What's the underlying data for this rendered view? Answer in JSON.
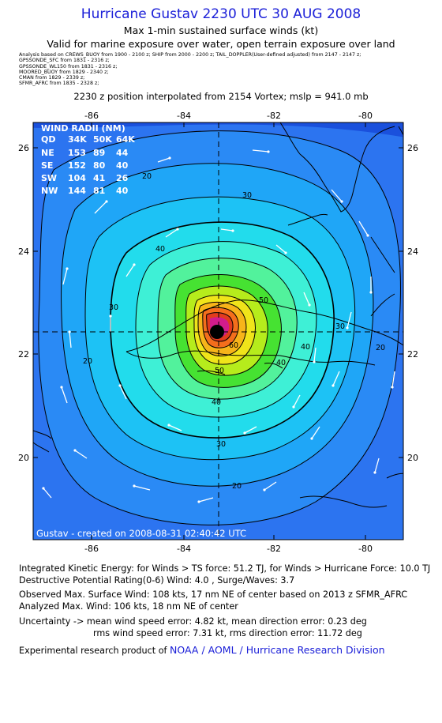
{
  "header": {
    "title": "Hurricane Gustav 2230 UTC 30 AUG 2008",
    "subtitle": "Max 1-min sustained surface winds (kt)",
    "validity": "Valid for marine exposure over water, open terrain exposure over land",
    "sources": [
      "Analysis based on CREWS_BUOY from 1900 - 2100 z;  SHIP from 2000 - 2200 z;  TAIL_DOPPLER(User-defined adjusted) from 2147 - 2147 z;",
      "GPSSONDE_SFC from 1831 - 2316 z;",
      "GPSSONDE_WL150 from 1831 - 2316 z;",
      "MOORED_BUOY from 1829 - 2340 z;",
      "CMAN from 1829 - 2339 z;",
      "SFMR_AFRC from 1835 - 2328 z;"
    ],
    "position_note": "2230 z position interpolated from 2154 Vortex; mslp = 941.0 mb"
  },
  "map": {
    "x_ticks": [
      "-86",
      "-84",
      "-82",
      "-80"
    ],
    "y_ticks": [
      "26",
      "24",
      "22",
      "20"
    ],
    "contour_labels": [
      "20",
      "30",
      "40",
      "30",
      "40",
      "30",
      "20",
      "40",
      "50",
      "60",
      "50",
      "40",
      "30",
      "20",
      "20"
    ],
    "wind_radii": {
      "title": "WIND RADII (NM)",
      "header": [
        "QD",
        "34K",
        "50K",
        "64K"
      ],
      "rows": [
        [
          "NE",
          "153",
          "89",
          "44"
        ],
        [
          "SE",
          "152",
          "80",
          "40"
        ],
        [
          "SW",
          "104",
          "41",
          "26"
        ],
        [
          "NW",
          "144",
          "81",
          "40"
        ]
      ]
    },
    "created_stamp": "Gustav - created on 2008-08-31 02:40:42 UTC",
    "colors": {
      "ocean": "#1e5ce6",
      "land_line": "#000000",
      "accent": "#1c20d8"
    }
  },
  "stats": {
    "ike": "Integrated Kinetic Energy:  for Winds > TS force: 51.2 TJ,  for Winds > Hurricane Force: 10.0 TJ",
    "dpr": "Destructive Potential Rating(0-6)   Wind: 4.0 , Surge/Waves: 3.7",
    "observed": "Observed Max. Surface Wind: 108 kts, 17 nm NE of center based on 2013 z SFMR_AFRC",
    "analyzed": "Analyzed Max. Wind: 106 kts, 18 nm NE of center",
    "uncertainty1": "Uncertainty -> mean wind speed error: 4.82 kt,   mean direction error: 0.23 deg",
    "uncertainty2": "rms wind speed error: 7.31 kt,   rms direction error: 11.72 deg",
    "credit_prefix": "Experimental research product of ",
    "credit_org": "NOAA / AOML / Hurricane Research Division"
  }
}
